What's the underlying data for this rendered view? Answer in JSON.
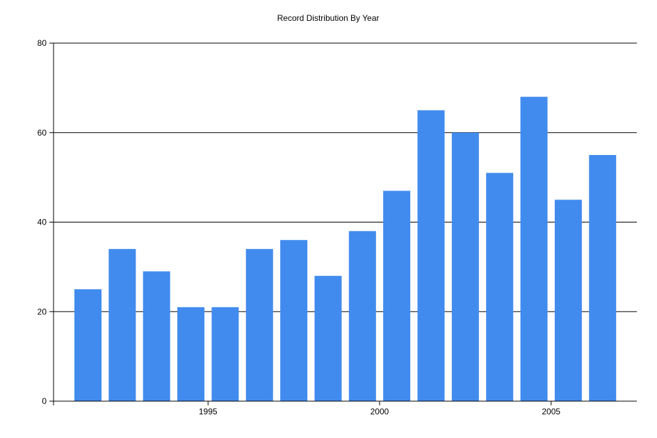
{
  "chart_data": {
    "type": "bar",
    "title": "Record Distribution By Year",
    "xlabel": "",
    "ylabel": "",
    "categories": [
      1991,
      1992,
      1993,
      1994,
      1995,
      1996,
      1997,
      1998,
      1999,
      2000,
      2001,
      2002,
      2003,
      2004,
      2005,
      2006
    ],
    "values": [
      25,
      34,
      29,
      21,
      21,
      34,
      36,
      28,
      38,
      47,
      65,
      60,
      51,
      68,
      45,
      55
    ],
    "ylim": [
      0,
      80
    ],
    "yticks": [
      "0",
      "20",
      "40",
      "60",
      "80"
    ],
    "xticks": [
      "1995",
      "2000",
      "2005"
    ],
    "grid": true,
    "bar_color": "#428BEE"
  }
}
